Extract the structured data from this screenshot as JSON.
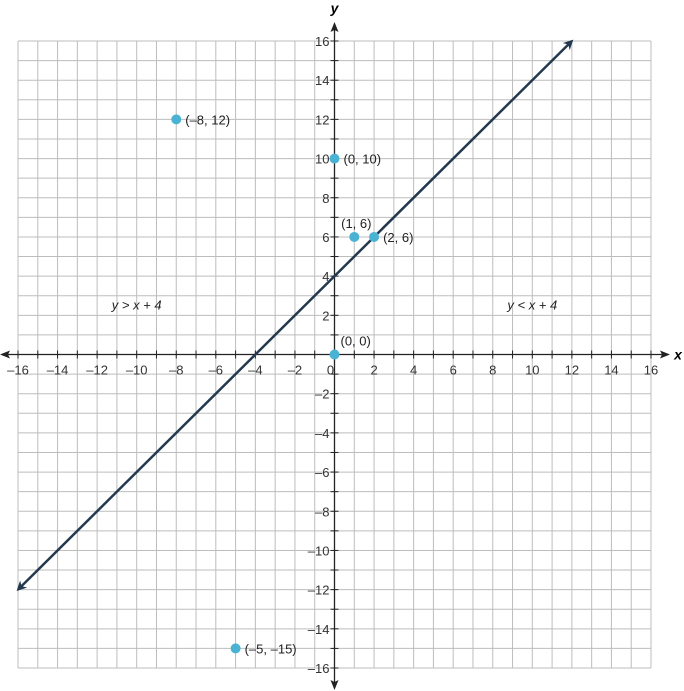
{
  "chart_data": {
    "type": "scatter",
    "xlabel": "x",
    "ylabel": "y",
    "xlim": [
      -16,
      16
    ],
    "ylim": [
      -16,
      16
    ],
    "grid": true,
    "xticks": [
      -16,
      -14,
      -12,
      -10,
      -8,
      -6,
      -4,
      -2,
      0,
      2,
      4,
      6,
      8,
      10,
      12,
      14,
      16
    ],
    "yticks": [
      -16,
      -14,
      -12,
      -10,
      -8,
      -6,
      -4,
      -2,
      2,
      4,
      6,
      8,
      10,
      12,
      14,
      16
    ],
    "tick_labels_x": [
      "–16",
      "–14",
      "–12",
      "–10",
      "–8",
      "–6",
      "–4",
      "–2",
      "0",
      "2",
      "4",
      "6",
      "8",
      "10",
      "12",
      "14",
      "16"
    ],
    "tick_labels_y": [
      "–16",
      "–14",
      "–12",
      "–10",
      "–8",
      "–6",
      "–4",
      "–2",
      "2",
      "4",
      "6",
      "8",
      "10",
      "12",
      "14",
      "16"
    ],
    "line": {
      "equation": "y = x + 4",
      "from": [
        -16,
        -12
      ],
      "to": [
        12,
        16
      ],
      "color": "#24394f"
    },
    "points": [
      {
        "x": -8,
        "y": 12,
        "label": "(–8, 12)"
      },
      {
        "x": 0,
        "y": 10,
        "label": "(0, 10)"
      },
      {
        "x": 1,
        "y": 6,
        "label": "(1, 6)"
      },
      {
        "x": 2,
        "y": 6,
        "label": "(2, 6)"
      },
      {
        "x": 0,
        "y": 0,
        "label": "(0, 0)"
      },
      {
        "x": -5,
        "y": -15,
        "label": "(–5, –15)"
      }
    ],
    "point_color": "#4ab3d4",
    "annotations": [
      {
        "text": "y > x + 4",
        "x": -10,
        "y": 2.3
      },
      {
        "text": "y < x + 4",
        "x": 10,
        "y": 2.3
      }
    ]
  }
}
